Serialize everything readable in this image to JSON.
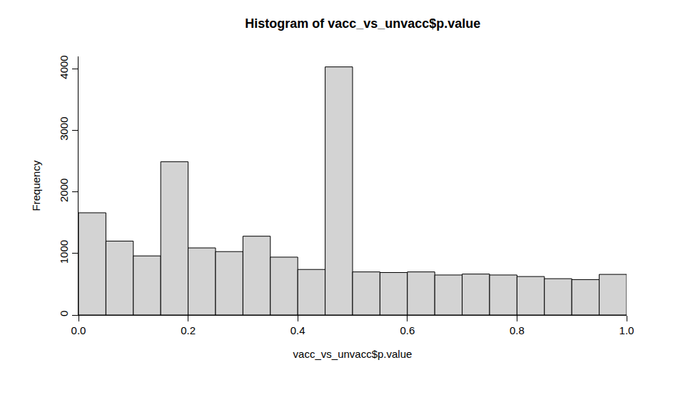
{
  "chart_data": {
    "type": "histogram",
    "title": "Histogram of vacc_vs_unvacc$p.value",
    "x_label": "vacc_vs_unvacc$p.value",
    "y_label": "Frequency",
    "bins": [
      0,
      0.05,
      0.1,
      0.15,
      0.2,
      0.25,
      0.3,
      0.35,
      0.4,
      0.45,
      0.5,
      0.55,
      0.6,
      0.65,
      0.7,
      0.75,
      0.8,
      0.85,
      0.9,
      0.95,
      1
    ],
    "values": [
      1660,
      1200,
      960,
      2490,
      1090,
      1030,
      1280,
      940,
      740,
      4030,
      700,
      690,
      700,
      650,
      665,
      650,
      625,
      590,
      575,
      660
    ],
    "color": "#d3d3d3",
    "xlim": [
      0,
      1
    ],
    "ylim": [
      0,
      4200
    ],
    "xticks": [
      {
        "value": 0,
        "label": "0.0"
      },
      {
        "value": 0.2,
        "label": "0.2"
      },
      {
        "value": 0.4,
        "label": "0.4"
      },
      {
        "value": 0.6,
        "label": "0.6"
      },
      {
        "value": 0.8,
        "label": "0.8"
      },
      {
        "value": 1,
        "label": "1.0"
      }
    ],
    "yticks": [
      0,
      1000,
      2000,
      3000,
      4000
    ],
    "grid": false
  }
}
